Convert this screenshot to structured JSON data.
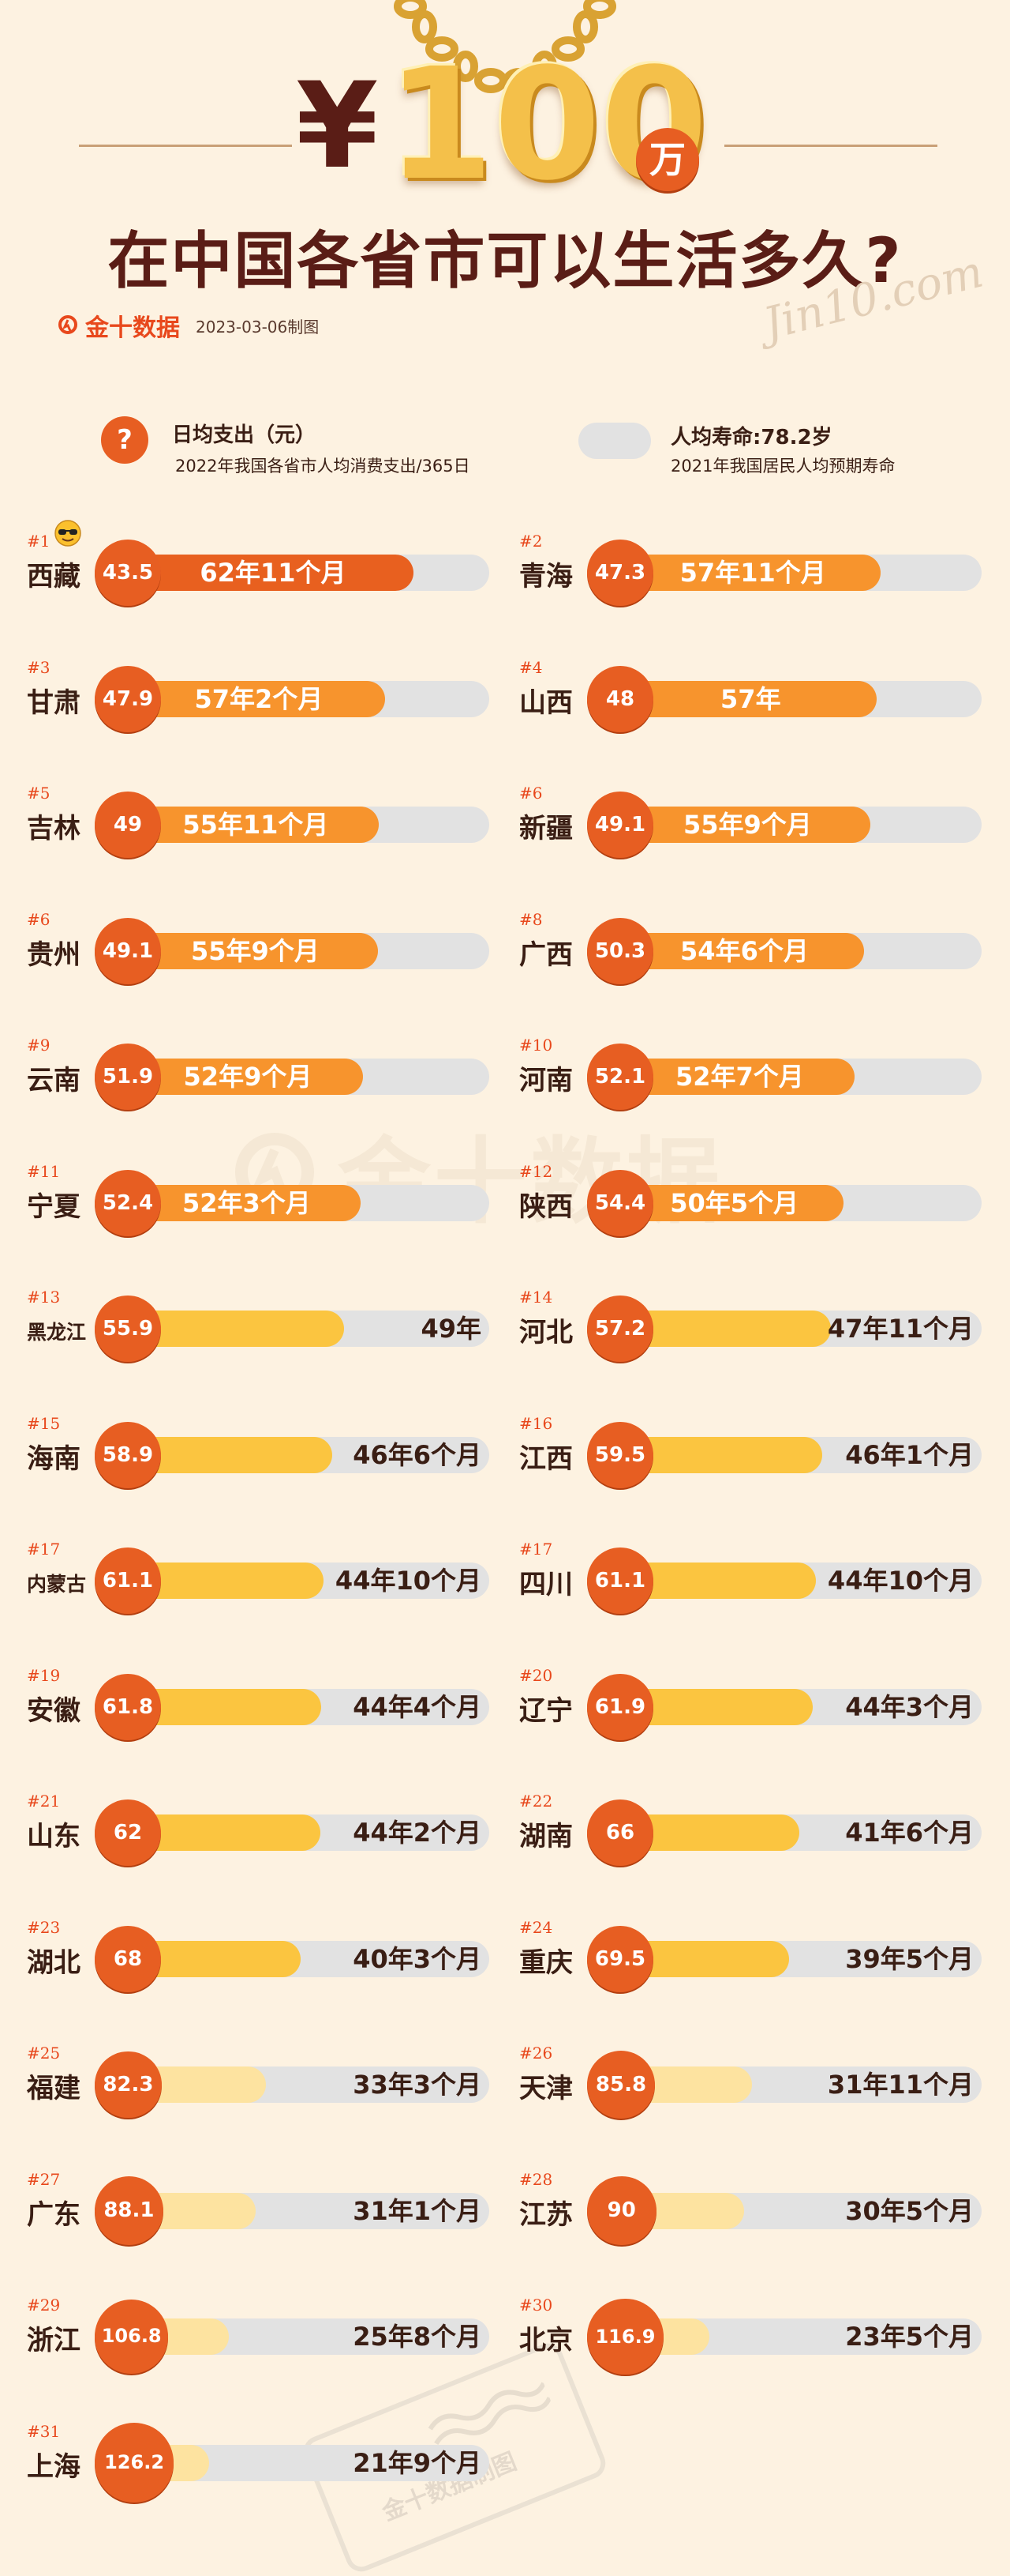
{
  "header": {
    "yen": "¥",
    "amount": "100",
    "unit": "万",
    "title": "在中国各省市可以生活多久?",
    "signature": "Jin10.com",
    "brand_name": "金十数据",
    "date": "2023-03-06制图"
  },
  "legend": {
    "circle_symbol": "?",
    "expense_title": "日均支出（元）",
    "expense_sub": "2022年我国各省市人均消费支出/365日",
    "life_title": "人均寿命:78.2岁",
    "life_sub": "2021年我国居民人均预期寿命"
  },
  "watermark": {
    "text": "金十数据",
    "stamp": "金十数据制图"
  },
  "colors": {
    "dark_orange": "#e8601f",
    "orange": "#f7942d",
    "yellow": "#fbc540",
    "pale_yellow": "#fde3a0",
    "track": "#e2e2e2",
    "title": "#5a1d16"
  },
  "chart_data": {
    "type": "bar",
    "title": "在中国各省市可以生活多久?",
    "max_years": 78.2,
    "items": [
      {
        "rank": "#1",
        "province": "西藏",
        "daily": "43.5",
        "duration": "62年11个月",
        "years": 62.92
      },
      {
        "rank": "#2",
        "province": "青海",
        "daily": "47.3",
        "duration": "57年11个月",
        "years": 57.92
      },
      {
        "rank": "#3",
        "province": "甘肃",
        "daily": "47.9",
        "duration": "57年2个月",
        "years": 57.17
      },
      {
        "rank": "#4",
        "province": "山西",
        "daily": "48",
        "duration": "57年",
        "years": 57.0
      },
      {
        "rank": "#5",
        "province": "吉林",
        "daily": "49",
        "duration": "55年11个月",
        "years": 55.92
      },
      {
        "rank": "#6",
        "province": "新疆",
        "daily": "49.1",
        "duration": "55年9个月",
        "years": 55.75
      },
      {
        "rank": "#6",
        "province": "贵州",
        "daily": "49.1",
        "duration": "55年9个月",
        "years": 55.75
      },
      {
        "rank": "#8",
        "province": "广西",
        "daily": "50.3",
        "duration": "54年6个月",
        "years": 54.5
      },
      {
        "rank": "#9",
        "province": "云南",
        "daily": "51.9",
        "duration": "52年9个月",
        "years": 52.75
      },
      {
        "rank": "#10",
        "province": "河南",
        "daily": "52.1",
        "duration": "52年7个月",
        "years": 52.58
      },
      {
        "rank": "#11",
        "province": "宁夏",
        "daily": "52.4",
        "duration": "52年3个月",
        "years": 52.25
      },
      {
        "rank": "#12",
        "province": "陕西",
        "daily": "54.4",
        "duration": "50年5个月",
        "years": 50.42
      },
      {
        "rank": "#13",
        "province": "黑龙江",
        "daily": "55.9",
        "duration": "49年",
        "years": 49.0
      },
      {
        "rank": "#14",
        "province": "河北",
        "daily": "57.2",
        "duration": "47年11个月",
        "years": 47.92
      },
      {
        "rank": "#15",
        "province": "海南",
        "daily": "58.9",
        "duration": "46年6个月",
        "years": 46.5
      },
      {
        "rank": "#16",
        "province": "江西",
        "daily": "59.5",
        "duration": "46年1个月",
        "years": 46.08
      },
      {
        "rank": "#17",
        "province": "内蒙古",
        "daily": "61.1",
        "duration": "44年10个月",
        "years": 44.83
      },
      {
        "rank": "#17",
        "province": "四川",
        "daily": "61.1",
        "duration": "44年10个月",
        "years": 44.83
      },
      {
        "rank": "#19",
        "province": "安徽",
        "daily": "61.8",
        "duration": "44年4个月",
        "years": 44.33
      },
      {
        "rank": "#20",
        "province": "辽宁",
        "daily": "61.9",
        "duration": "44年3个月",
        "years": 44.25
      },
      {
        "rank": "#21",
        "province": "山东",
        "daily": "62",
        "duration": "44年2个月",
        "years": 44.17
      },
      {
        "rank": "#22",
        "province": "湖南",
        "daily": "66",
        "duration": "41年6个月",
        "years": 41.5
      },
      {
        "rank": "#23",
        "province": "湖北",
        "daily": "68",
        "duration": "40年3个月",
        "years": 40.25
      },
      {
        "rank": "#24",
        "province": "重庆",
        "daily": "69.5",
        "duration": "39年5个月",
        "years": 39.42
      },
      {
        "rank": "#25",
        "province": "福建",
        "daily": "82.3",
        "duration": "33年3个月",
        "years": 33.25
      },
      {
        "rank": "#26",
        "province": "天津",
        "daily": "85.8",
        "duration": "31年11个月",
        "years": 31.92
      },
      {
        "rank": "#27",
        "province": "广东",
        "daily": "88.1",
        "duration": "31年1个月",
        "years": 31.08
      },
      {
        "rank": "#28",
        "province": "江苏",
        "daily": "90",
        "duration": "30年5个月",
        "years": 30.42
      },
      {
        "rank": "#29",
        "province": "浙江",
        "daily": "106.8",
        "duration": "25年8个月",
        "years": 25.67
      },
      {
        "rank": "#30",
        "province": "北京",
        "daily": "116.9",
        "duration": "23年5个月",
        "years": 23.42
      },
      {
        "rank": "#31",
        "province": "上海",
        "daily": "126.2",
        "duration": "21年9个月",
        "years": 21.75
      }
    ]
  }
}
